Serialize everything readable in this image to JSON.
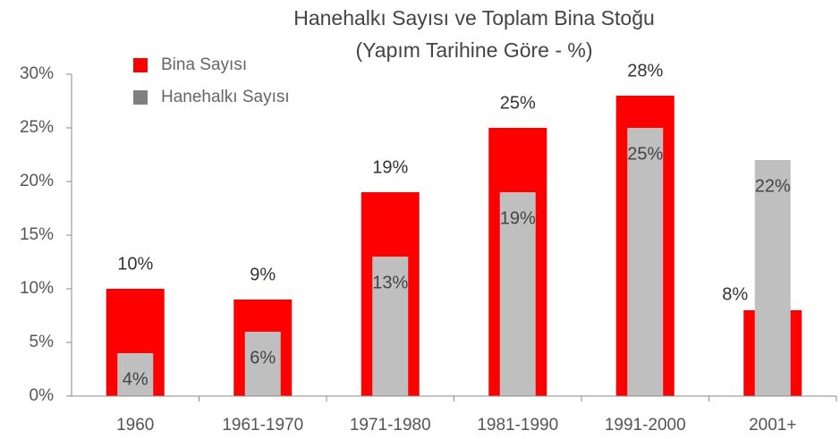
{
  "chart_data": {
    "type": "bar",
    "title": "Hanehalkı Sayısı ve Toplam Bina Stoğu",
    "subtitle": "(Yapım Tarihine Göre - %)",
    "categories": [
      "1960",
      "1961-1970",
      "1971-1980",
      "1981-1990",
      "1991-2000",
      "2001+"
    ],
    "series": [
      {
        "name": "Bina Sayısı",
        "color": "#ff0000",
        "values": [
          10,
          9,
          19,
          25,
          28,
          8
        ],
        "value_labels": [
          "10%",
          "9%",
          "19%",
          "25%",
          "28%",
          "8%"
        ]
      },
      {
        "name": "Hanehalkı Sayısı",
        "color": "#bfbfbf",
        "values": [
          4,
          6,
          13,
          19,
          25,
          22
        ],
        "value_labels": [
          "4%",
          "6%",
          "13%",
          "19%",
          "25%",
          "22%"
        ]
      }
    ],
    "ylim": [
      0,
      30
    ],
    "yticks": [
      {
        "value": 0,
        "label": "0%"
      },
      {
        "value": 5,
        "label": "5%"
      },
      {
        "value": 10,
        "label": "10%"
      },
      {
        "value": 15,
        "label": "15%"
      },
      {
        "value": 20,
        "label": "20%"
      },
      {
        "value": 25,
        "label": "25%"
      },
      {
        "value": 30,
        "label": "30%"
      }
    ],
    "legend": "upper left"
  }
}
